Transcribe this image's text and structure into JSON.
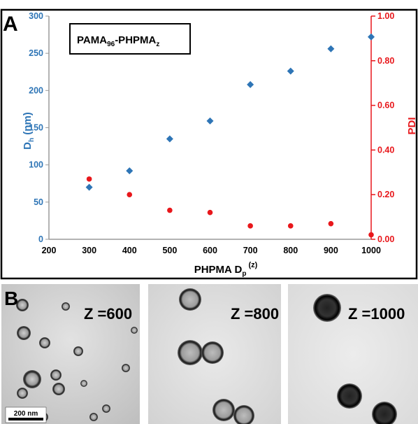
{
  "panel_a": {
    "letter": "A",
    "legend_box": {
      "main": "PAMA",
      "sub1": "96",
      "mid": "-PHPMA",
      "sub2": "z"
    }
  },
  "panel_b": {
    "letter": "B",
    "scale_bar": "200 nm",
    "images": [
      {
        "label": "Z =600"
      },
      {
        "label": "Z =800"
      },
      {
        "label": "Z =1000"
      }
    ]
  },
  "colors": {
    "dh": "#2e75b6",
    "pdi": "#e8171b",
    "frame": "#000000"
  },
  "chart_data": {
    "type": "scatter",
    "xlabel": {
      "main": "PHPMA D",
      "sub": "p",
      "sup": "(z)"
    },
    "ylabel_left": {
      "main": "D",
      "sub": "h",
      "rest": " (nm)"
    },
    "ylabel_right": "PDI",
    "xlim": [
      200,
      1000
    ],
    "xticks": [
      "200",
      "300",
      "400",
      "500",
      "600",
      "700",
      "800",
      "900",
      "1000"
    ],
    "y_left_lim": [
      0,
      300
    ],
    "y_left_ticks": [
      "0",
      "50",
      "100",
      "150",
      "200",
      "250",
      "300"
    ],
    "y_right_lim": [
      0,
      1
    ],
    "y_right_ticks": [
      "0.00",
      "0.20",
      "0.40",
      "0.60",
      "0.80",
      "1.00"
    ],
    "grid": false,
    "series": [
      {
        "axis": "left",
        "marker": "diamond",
        "color": "#2e75b6",
        "x": [
          300,
          400,
          500,
          600,
          700,
          800,
          900,
          1000
        ],
        "y": [
          70,
          92,
          135,
          159,
          208,
          226,
          256,
          272
        ]
      },
      {
        "axis": "right",
        "marker": "circle",
        "color": "#e8171b",
        "x": [
          300,
          400,
          500,
          600,
          700,
          800,
          900,
          1000
        ],
        "y": [
          0.27,
          0.2,
          0.13,
          0.12,
          0.06,
          0.06,
          0.07,
          0.02
        ]
      }
    ]
  }
}
